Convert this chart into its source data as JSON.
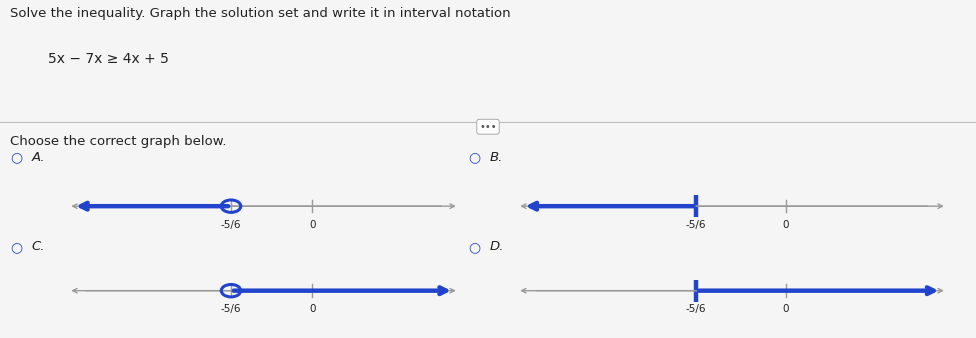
{
  "title_line1": "Solve the inequality. Graph the solution set and write it in interval notation",
  "equation": "5x − 7x ≥ 4x + 5",
  "choose_text": "Choose the correct graph below.",
  "background_color": "#f5f5f5",
  "graphs": [
    {
      "label": "A.",
      "point": -0.833,
      "point_label": "-5/6",
      "closed": false,
      "direction": "left"
    },
    {
      "label": "B.",
      "point": -0.833,
      "point_label": "-5/6",
      "closed": true,
      "direction": "left"
    },
    {
      "label": "C.",
      "point": -0.833,
      "point_label": "-5/6",
      "closed": false,
      "direction": "right"
    },
    {
      "label": "D.",
      "point": -0.833,
      "point_label": "-5/6",
      "closed": true,
      "direction": "right"
    }
  ],
  "line_color": "#2244cc",
  "axis_color": "#999999",
  "xlim": [
    -2.5,
    1.5
  ],
  "text_color": "#222222",
  "radio_color": "#2244cc",
  "label_color": "#222222"
}
